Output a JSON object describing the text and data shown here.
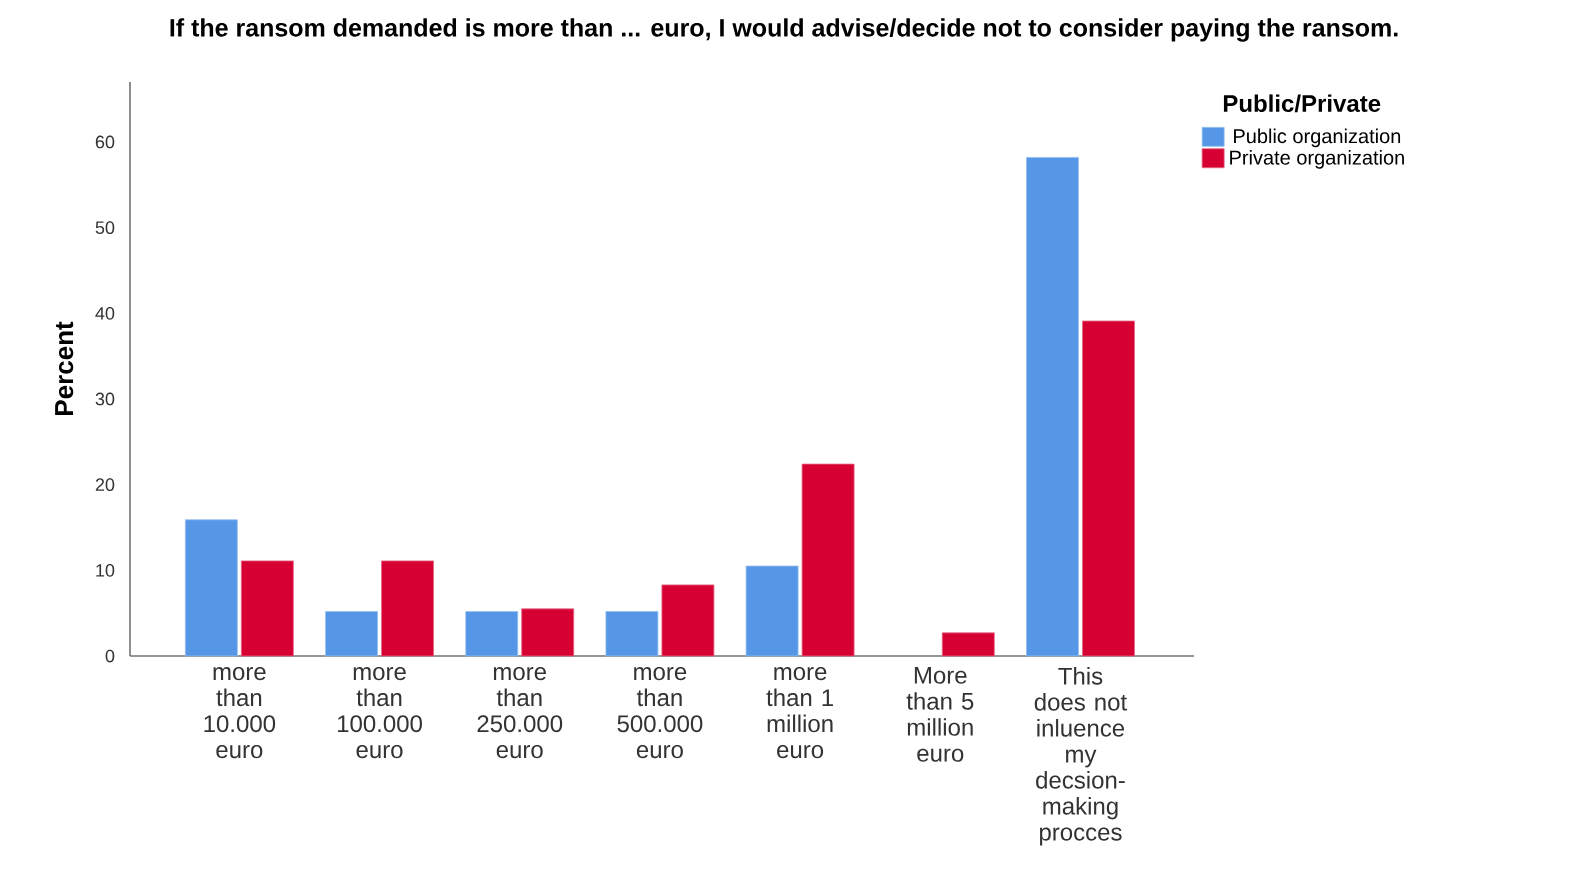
{
  "chart_data": {
    "type": "bar",
    "title": "If the ransom demanded is more than ... euro, I would advise/decide not to consider paying the ransom.",
    "ylabel": "Percent",
    "legend_title": "Public/Private",
    "categories": [
      "more than 10.000 euro",
      "more than 100.000 euro",
      "more than 250.000 euro",
      "more than 500.000 euro",
      "more than 1 million euro",
      "More than 5 million euro",
      "This does not inluence my decsion-making procces"
    ],
    "series": [
      {
        "name": "Public organization",
        "color": "#5596e6",
        "values": [
          15.9,
          5.2,
          5.2,
          5.2,
          10.5,
          null,
          58.2
        ]
      },
      {
        "name": "Private organization",
        "color": "#d60032",
        "values": [
          11.1,
          11.1,
          5.5,
          8.3,
          22.4,
          2.7,
          39.1
        ]
      }
    ],
    "ylim": [
      0,
      67
    ],
    "yticks": [
      0,
      10,
      20,
      30,
      40,
      50,
      60
    ],
    "grid": false,
    "legend": "top right"
  }
}
